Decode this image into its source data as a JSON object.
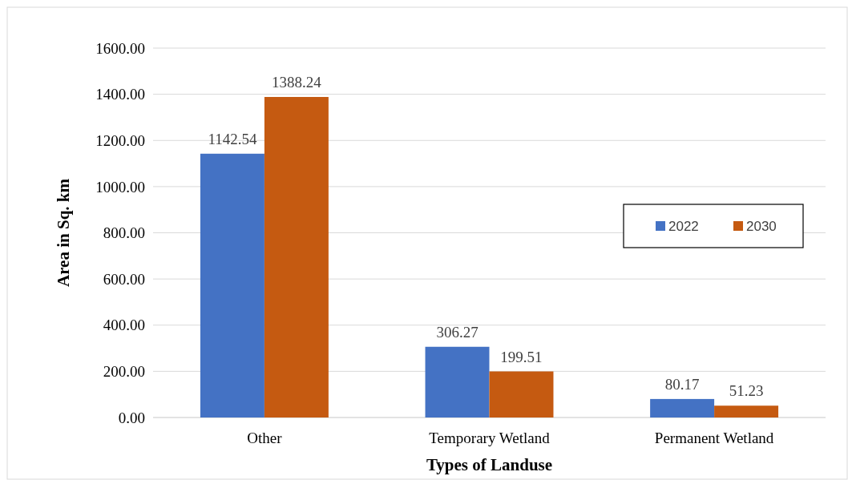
{
  "chart_data": {
    "type": "bar",
    "xlabel": "Types of Landuse",
    "ylabel": "Area in Sq. km",
    "categories": [
      "Other",
      "Temporary Wetland",
      "Permanent Wetland"
    ],
    "series": [
      {
        "name": "2022",
        "color": "#4472c4",
        "values": [
          1142.54,
          306.27,
          80.17
        ]
      },
      {
        "name": "2030",
        "color": "#c55a11",
        "values": [
          1388.24,
          199.51,
          51.23
        ]
      }
    ],
    "ylim": [
      0,
      1600
    ],
    "yticks": [
      {
        "value": 0,
        "label": "0.00"
      },
      {
        "value": 200,
        "label": "200.00"
      },
      {
        "value": 400,
        "label": "400.00"
      },
      {
        "value": 600,
        "label": "600.00"
      },
      {
        "value": 800,
        "label": "800.00"
      },
      {
        "value": 1000,
        "label": "1000.00"
      },
      {
        "value": 1200,
        "label": "1200.00"
      },
      {
        "value": 1400,
        "label": "1400.00"
      },
      {
        "value": 1600,
        "label": "1600.00"
      }
    ],
    "grid": "y",
    "legend": "right",
    "data_labels": true
  }
}
